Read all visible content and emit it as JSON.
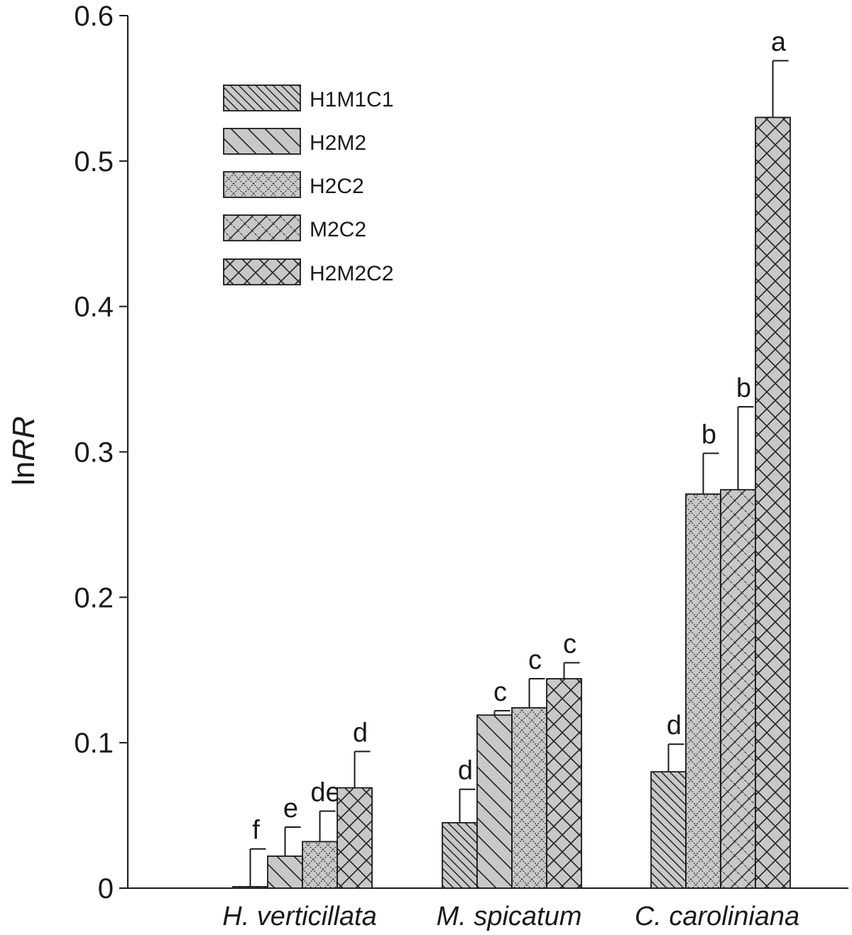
{
  "chart_data": {
    "type": "bar",
    "title": "",
    "xlabel": "",
    "ylabel": "lnRR",
    "ylabel_parts": {
      "prefix": "ln",
      "italic": "RR"
    },
    "ylim": [
      0,
      0.6
    ],
    "yticks": [
      0,
      0.1,
      0.2,
      0.3,
      0.4,
      0.5,
      0.6
    ],
    "ytick_labels": [
      "0",
      "0.1",
      "0.2",
      "0.3",
      "0.4",
      "0.5",
      "0.6"
    ],
    "grid": false,
    "legend_position": "top-left",
    "categories": [
      "H. verticillata",
      "M. spicatum",
      "C. caroliniana"
    ],
    "series": [
      {
        "name": "H1M1C1",
        "pattern": "fine-diagonal",
        "values": [
          0.001,
          0.045,
          0.08
        ],
        "errors": [
          0.026,
          0.023,
          0.019
        ],
        "letters": [
          "f",
          "d",
          "d"
        ]
      },
      {
        "name": "H2M2",
        "pattern": "wide-diagonal",
        "values": [
          0.022,
          0.119,
          null
        ],
        "errors": [
          0.02,
          0.003,
          null
        ],
        "letters": [
          "e",
          "c",
          ""
        ]
      },
      {
        "name": "H2C2",
        "pattern": "fine-crosshatch",
        "values": [
          0.032,
          0.124,
          0.271
        ],
        "errors": [
          0.021,
          0.02,
          0.028
        ],
        "letters": [
          "de",
          "c",
          "b"
        ]
      },
      {
        "name": "M2C2",
        "pattern": "stepped-diagonal",
        "values": [
          null,
          null,
          0.274
        ],
        "errors": [
          null,
          null,
          0.057
        ],
        "letters": [
          "",
          "",
          "b"
        ]
      },
      {
        "name": "H2M2C2",
        "pattern": "crosshatch",
        "values": [
          0.069,
          0.144,
          0.53
        ],
        "errors": [
          0.025,
          0.011,
          0.039
        ],
        "letters": [
          "d",
          "c",
          "a"
        ]
      }
    ],
    "colors": {
      "bar_fill": "#c8c8c8",
      "stroke": "#1a1a1a",
      "pattern_line": "#222222"
    }
  }
}
